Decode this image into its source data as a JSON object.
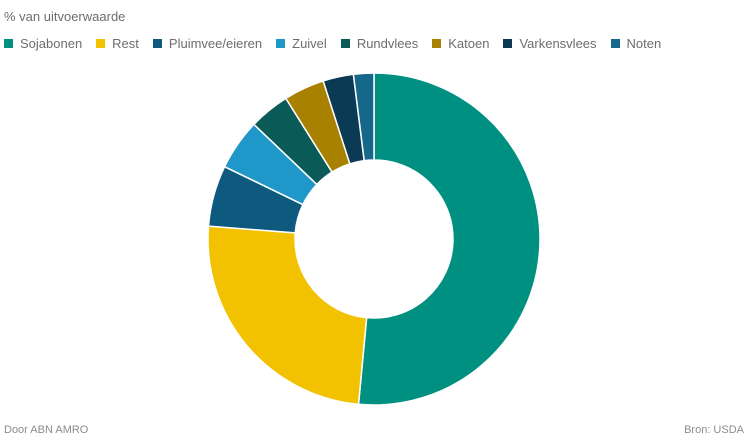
{
  "chart_data": {
    "type": "pie",
    "subtitle": "% van uitvoerwaarde",
    "categories": [
      "Sojabonen",
      "Rest",
      "Pluimvee/eieren",
      "Zuivel",
      "Rundvlees",
      "Katoen",
      "Varkensvlees",
      "Noten"
    ],
    "values": [
      52,
      25,
      6,
      5,
      4,
      4,
      3,
      2
    ],
    "colors": [
      "#009082",
      "#f2c100",
      "#0e5a7e",
      "#1f98c9",
      "#0a5b58",
      "#a98100",
      "#0b3a54",
      "#15688a"
    ],
    "legend_position": "top-left",
    "donut": true
  },
  "footer": {
    "credit": "Door ABN AMRO",
    "source": "Bron:  USDA"
  }
}
